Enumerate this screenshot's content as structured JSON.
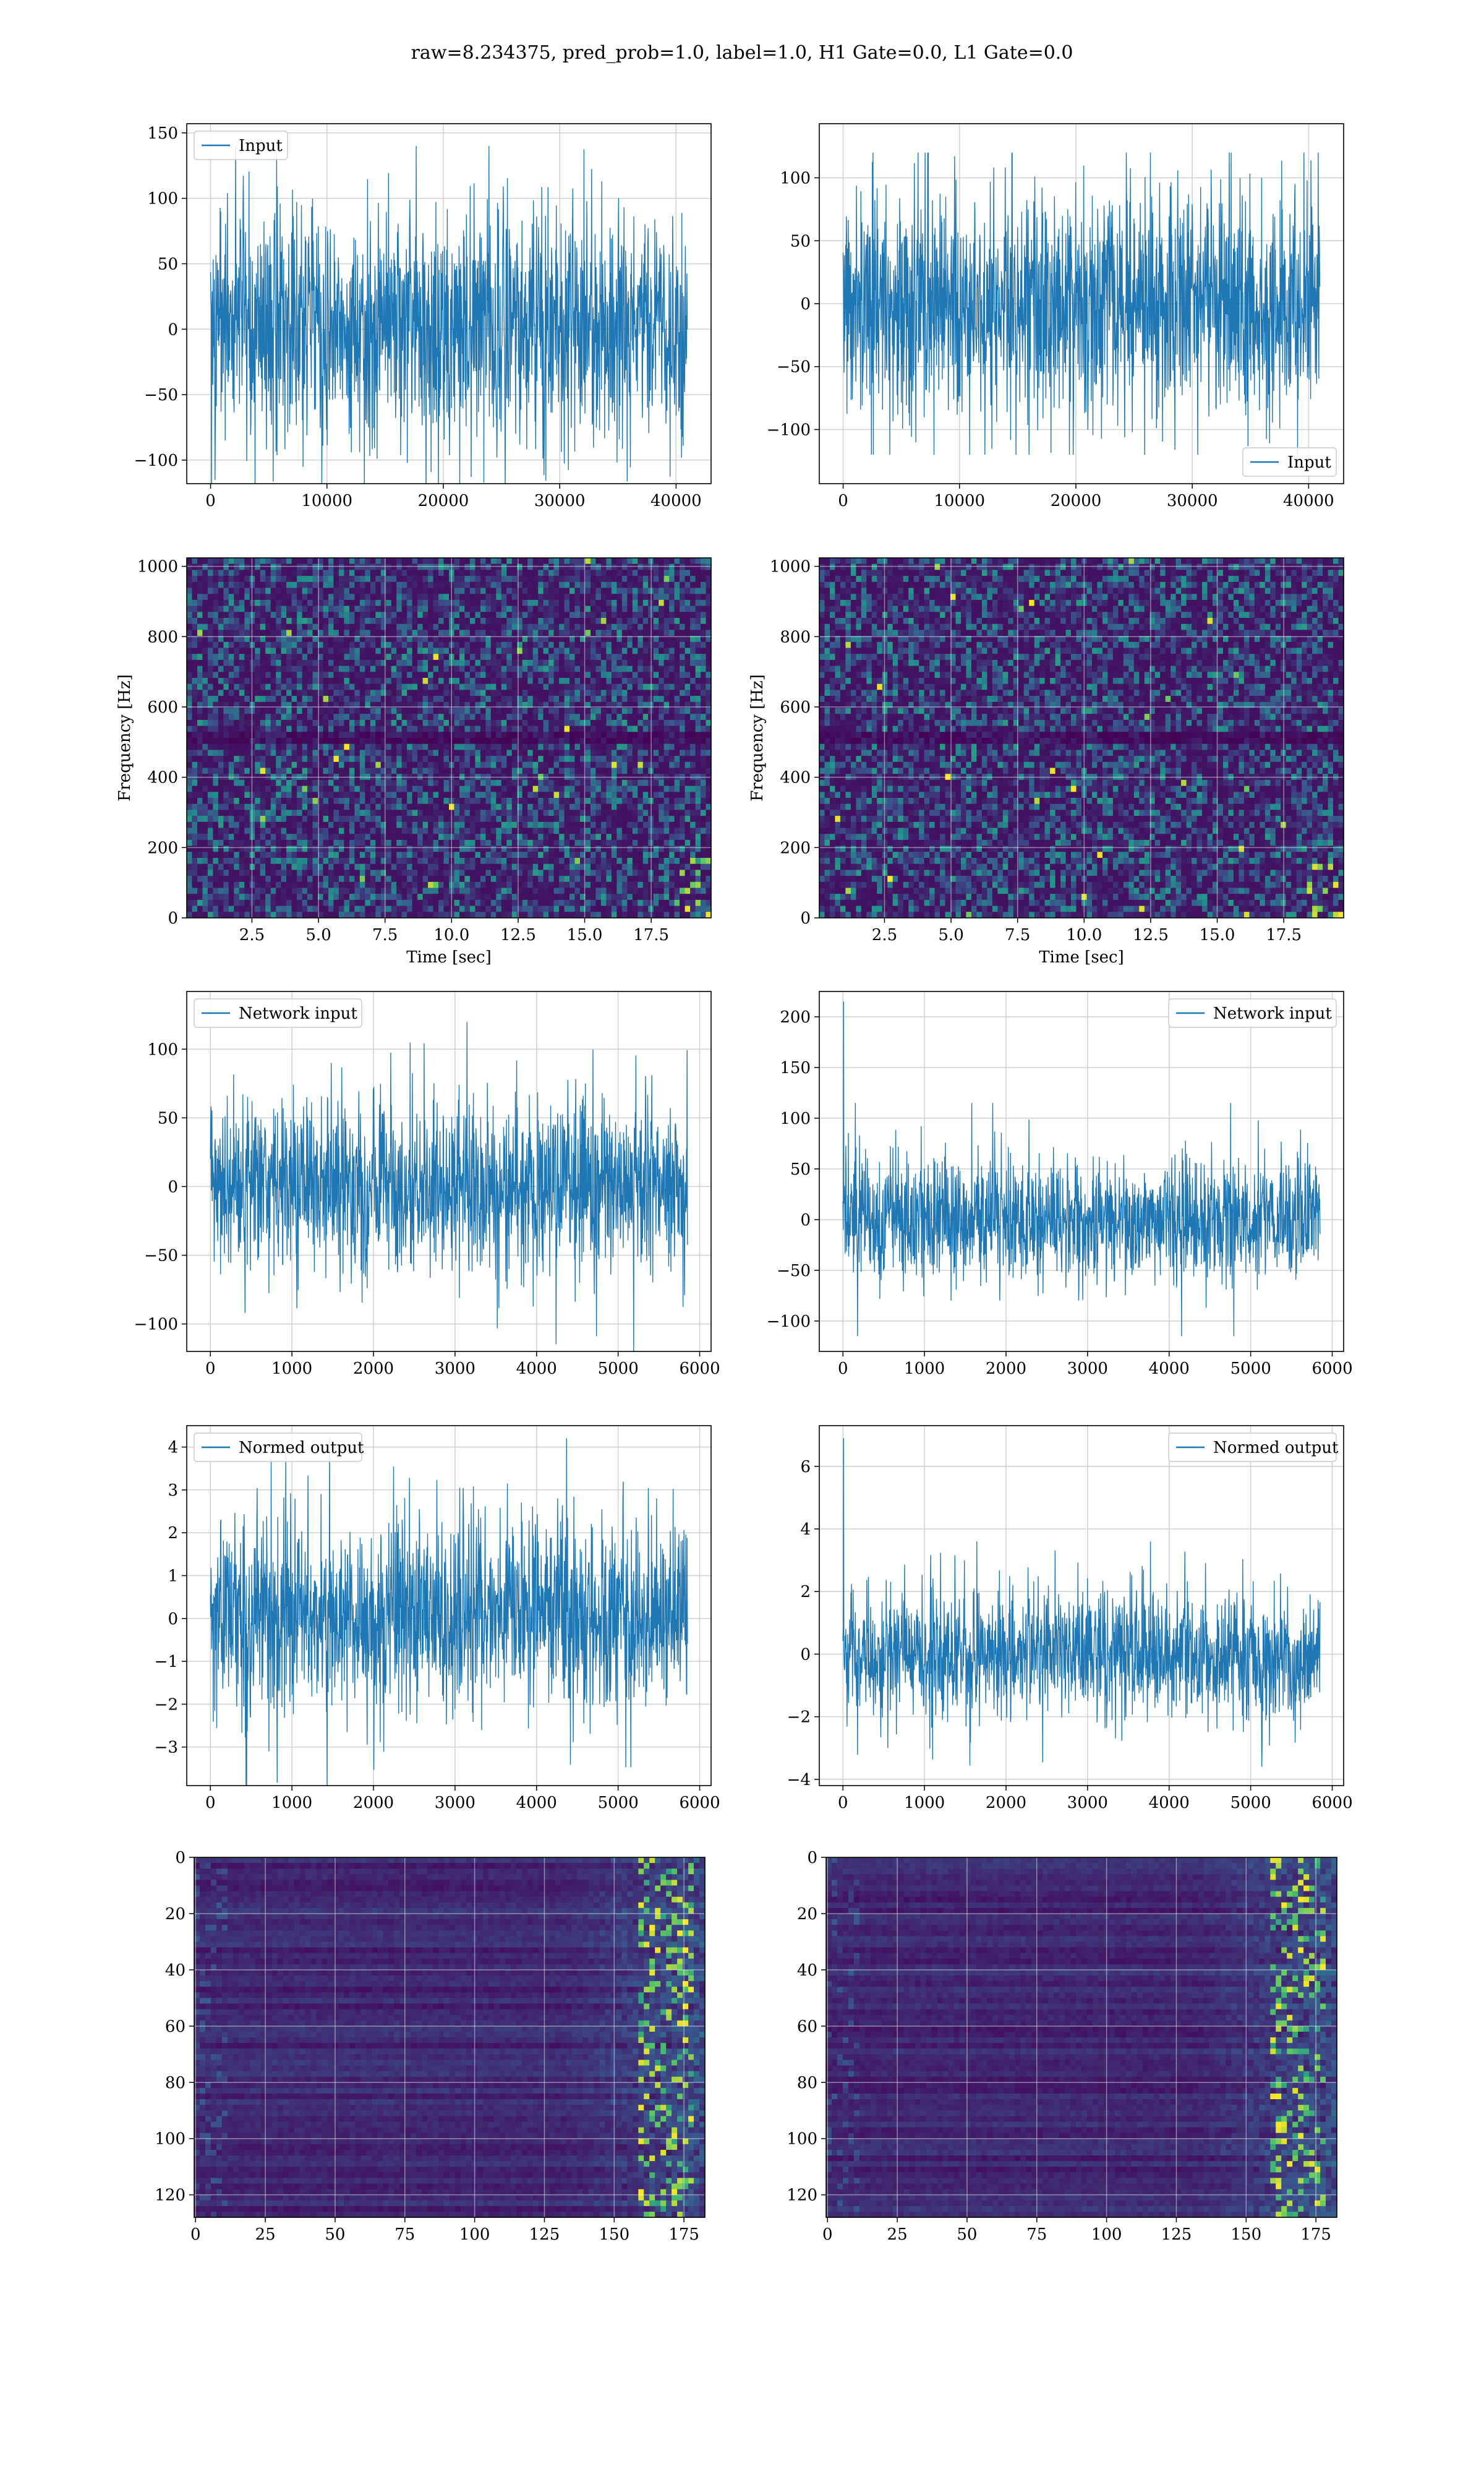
{
  "figure": {
    "title": "raw=8.234375, pred_prob=1.0, label=1.0, H1 Gate=0.0, L1 Gate=0.0"
  },
  "colors": {
    "line": "#1f77b4",
    "grid": "#d0d0d0",
    "heatmap_low": "#440154",
    "heatmap_mid": "#21918c",
    "heatmap_high": "#fde725"
  },
  "chart_data": [
    {
      "id": "h1-input",
      "type": "line",
      "series": [
        {
          "name": "Input",
          "x_range": [
            0,
            40960
          ],
          "typical_amplitude": 45,
          "peak_amplitude": 140
        }
      ],
      "legend": "top-left",
      "xlim": [
        -2048,
        43008
      ],
      "ylim": [
        -118,
        157
      ],
      "xticks": [
        0,
        10000,
        20000,
        30000,
        40000
      ],
      "yticks": [
        -100,
        -50,
        0,
        50,
        100,
        150
      ],
      "grid": true
    },
    {
      "id": "l1-input",
      "type": "line",
      "series": [
        {
          "name": "Input",
          "x_range": [
            0,
            40960
          ],
          "typical_amplitude": 45,
          "peak_amplitude": 120
        }
      ],
      "legend": "bottom-right",
      "xlim": [
        -2048,
        43008
      ],
      "ylim": [
        -143,
        143
      ],
      "xticks": [
        0,
        10000,
        20000,
        30000,
        40000
      ],
      "yticks": [
        -100,
        -50,
        0,
        50,
        100
      ],
      "grid": true
    },
    {
      "id": "h1-spectrogram",
      "type": "heatmap",
      "xlabel": "Time [sec]",
      "ylabel": "Frequency [Hz]",
      "xlim": [
        0.05,
        19.75
      ],
      "ylim": [
        0,
        1024
      ],
      "xticks": [
        2.5,
        5.0,
        7.5,
        10.0,
        12.5,
        15.0,
        17.5
      ],
      "yticks": [
        0,
        200,
        400,
        600,
        800,
        1000
      ],
      "grid": true
    },
    {
      "id": "l1-spectrogram",
      "type": "heatmap",
      "xlabel": "Time [sec]",
      "ylabel": "Frequency [Hz]",
      "xlim": [
        0.05,
        19.75
      ],
      "ylim": [
        0,
        1024
      ],
      "xticks": [
        2.5,
        5.0,
        7.5,
        10.0,
        12.5,
        15.0,
        17.5
      ],
      "yticks": [
        0,
        200,
        400,
        600,
        800,
        1000
      ],
      "grid": true
    },
    {
      "id": "h1-network-input",
      "type": "line",
      "series": [
        {
          "name": "Network input",
          "x_range": [
            0,
            5850
          ],
          "typical_amplitude": 30,
          "peak_amplitude": 120
        }
      ],
      "legend": "top-left",
      "xlim": [
        -290,
        6140
      ],
      "ylim": [
        -120,
        142
      ],
      "xticks": [
        0,
        1000,
        2000,
        3000,
        4000,
        5000,
        6000
      ],
      "yticks": [
        -100,
        -50,
        0,
        50,
        100
      ],
      "grid": true
    },
    {
      "id": "l1-network-input",
      "type": "line",
      "series": [
        {
          "name": "Network input",
          "x_range": [
            0,
            5850
          ],
          "typical_amplitude": 30,
          "peak_amplitude": 115,
          "spike_at_start": 215
        }
      ],
      "legend": "top-right",
      "xlim": [
        -290,
        6140
      ],
      "ylim": [
        -130,
        225
      ],
      "xticks": [
        0,
        1000,
        2000,
        3000,
        4000,
        5000,
        6000
      ],
      "yticks": [
        -100,
        -50,
        0,
        50,
        100,
        150,
        200
      ],
      "grid": true
    },
    {
      "id": "h1-normed-output",
      "type": "line",
      "series": [
        {
          "name": "Normed output",
          "x_range": [
            0,
            5850
          ],
          "typical_amplitude": 1.1,
          "peak_amplitude": 4.2
        }
      ],
      "legend": "top-left",
      "xlim": [
        -290,
        6140
      ],
      "ylim": [
        -3.9,
        4.5
      ],
      "xticks": [
        0,
        1000,
        2000,
        3000,
        4000,
        5000,
        6000
      ],
      "yticks": [
        -3,
        -2,
        -1,
        0,
        1,
        2,
        3,
        4
      ],
      "grid": true
    },
    {
      "id": "l1-normed-output",
      "type": "line",
      "series": [
        {
          "name": "Normed output",
          "x_range": [
            0,
            5850
          ],
          "typical_amplitude": 1.0,
          "peak_amplitude": 3.6,
          "spike_at_start": 6.9
        }
      ],
      "legend": "top-right",
      "xlim": [
        -290,
        6140
      ],
      "ylim": [
        -4.2,
        7.3
      ],
      "xticks": [
        0,
        1000,
        2000,
        3000,
        4000,
        5000,
        6000
      ],
      "yticks": [
        -4,
        -2,
        0,
        2,
        4,
        6
      ],
      "grid": true
    },
    {
      "id": "h1-feature-map",
      "type": "heatmap",
      "xlim": [
        -0.5,
        182.5
      ],
      "ylim": [
        128,
        0
      ],
      "xticks": [
        0,
        25,
        50,
        75,
        100,
        125,
        150,
        175
      ],
      "yticks": [
        0,
        20,
        40,
        60,
        80,
        100,
        120
      ],
      "grid": true
    },
    {
      "id": "l1-feature-map",
      "type": "heatmap",
      "xlim": [
        -0.5,
        182.5
      ],
      "ylim": [
        128,
        0
      ],
      "xticks": [
        0,
        25,
        50,
        75,
        100,
        125,
        150,
        175
      ],
      "yticks": [
        0,
        20,
        40,
        60,
        80,
        100,
        120
      ],
      "grid": true
    }
  ]
}
